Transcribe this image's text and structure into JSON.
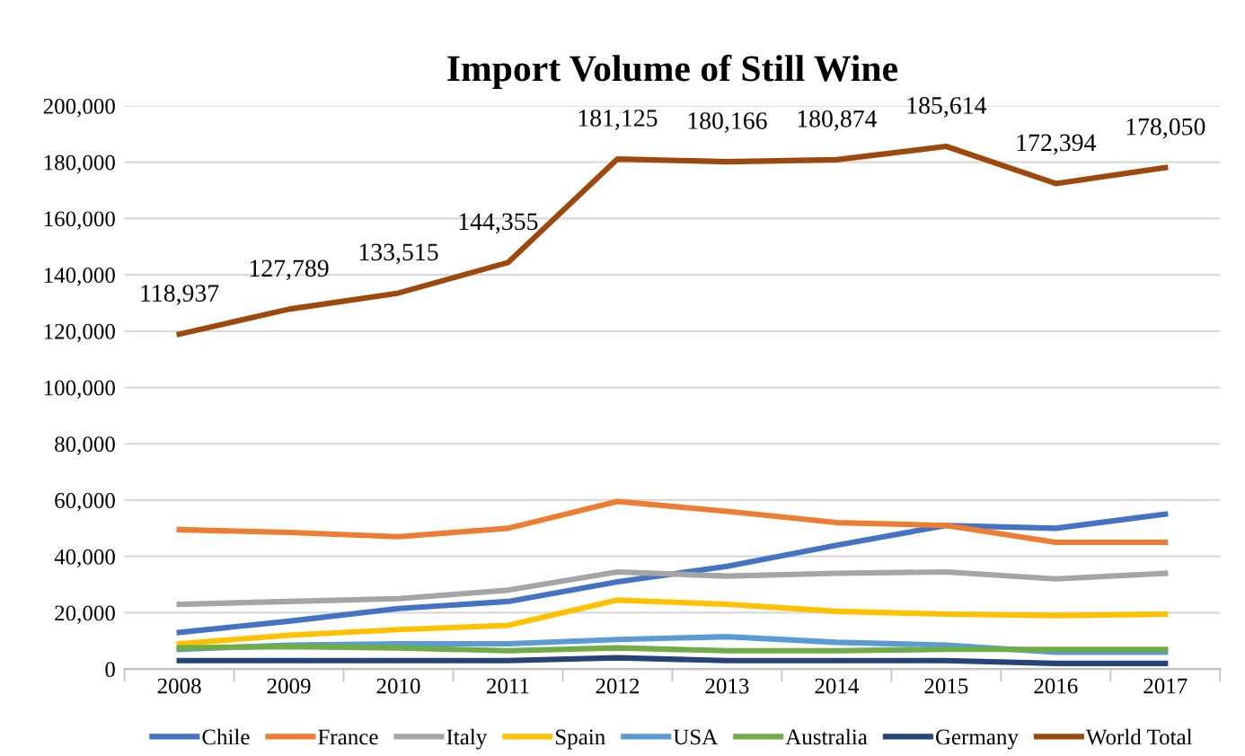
{
  "chart_data": {
    "type": "line",
    "title": "Import Volume of Still Wine",
    "categories": [
      "2008",
      "2009",
      "2010",
      "2011",
      "2012",
      "2013",
      "2014",
      "2015",
      "2016",
      "2017"
    ],
    "ylim": [
      0,
      200000
    ],
    "yticks": [
      0,
      {
        "value": 20000,
        "label": "20,000"
      },
      {
        "value": 40000,
        "label": "40,000"
      },
      {
        "value": 60000,
        "label": "60,000"
      },
      {
        "value": 80000,
        "label": "80,000"
      },
      {
        "value": 100000,
        "label": "100,000"
      },
      {
        "value": 120000,
        "label": "120,000"
      },
      {
        "value": 140000,
        "label": "140,000"
      },
      {
        "value": 160000,
        "label": "160,000"
      },
      {
        "value": 180000,
        "label": "180,000"
      },
      {
        "value": 200000,
        "label": "200,000"
      }
    ],
    "grid": "y",
    "legend": "bottom",
    "marker": "none",
    "line_style": "solid",
    "series": [
      {
        "name": "Chile",
        "color": "#4472c4",
        "values": [
          13000,
          17000,
          21500,
          24000,
          31000,
          36500,
          44000,
          51000,
          50000,
          55000
        ]
      },
      {
        "name": "France",
        "color": "#ed7d31",
        "values": [
          49500,
          48500,
          47000,
          50000,
          59500,
          56000,
          52000,
          51000,
          45000,
          45000
        ]
      },
      {
        "name": "Italy",
        "color": "#a5a5a5",
        "values": [
          23000,
          24000,
          25000,
          28000,
          34500,
          33000,
          34000,
          34500,
          32000,
          34000
        ]
      },
      {
        "name": "Spain",
        "color": "#ffc000",
        "values": [
          9000,
          12000,
          14000,
          15500,
          24500,
          23000,
          20500,
          19500,
          19000,
          19500
        ]
      },
      {
        "name": "USA",
        "color": "#5b9bd5",
        "values": [
          7000,
          8500,
          9000,
          9000,
          10500,
          11500,
          9500,
          8500,
          6000,
          6000
        ]
      },
      {
        "name": "Australia",
        "color": "#70ad47",
        "values": [
          7500,
          8000,
          7500,
          6500,
          7500,
          6500,
          6500,
          7000,
          7000,
          7000
        ]
      },
      {
        "name": "Germany",
        "color": "#264478",
        "values": [
          3000,
          3000,
          3000,
          3000,
          4000,
          3000,
          3000,
          3000,
          2000,
          2000
        ]
      },
      {
        "name": "World Total",
        "color": "#9e480e",
        "values": [
          118937,
          127789,
          133515,
          144355,
          181125,
          180166,
          180874,
          185614,
          172394,
          178050
        ],
        "value_labels": [
          "118,937",
          "127,789",
          "133,515",
          "144,355",
          "181,125",
          "180,166",
          "180,874",
          "185,614",
          "172,394",
          "178,050"
        ]
      }
    ]
  }
}
